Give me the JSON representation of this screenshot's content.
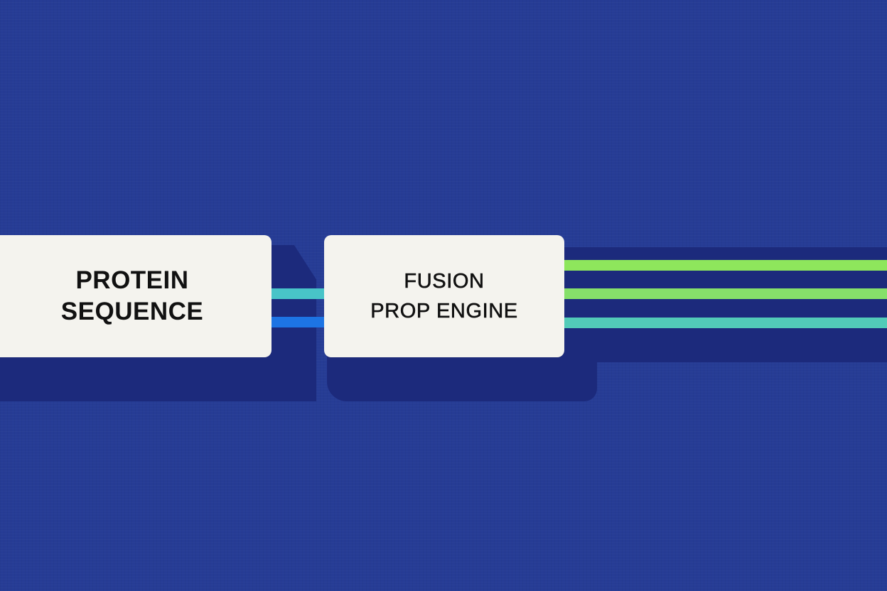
{
  "diagram": {
    "background_color": "#263c95",
    "shadow_color": "#1c2a7c",
    "nodes": [
      {
        "id": "protein-sequence",
        "lines": [
          "PROTEIN",
          "SEQUENCE"
        ],
        "fill": "#f4f3ee"
      },
      {
        "id": "fusion-prop-engine",
        "lines": [
          "FUSION",
          "PROP ENGINE"
        ],
        "fill": "#f4f3ee"
      }
    ],
    "connectors": {
      "between_nodes": [
        "#48c4c8",
        "#1d74e4"
      ],
      "outputs": [
        "#8ee65c",
        "#86e06a",
        "#52cbb8"
      ]
    }
  }
}
